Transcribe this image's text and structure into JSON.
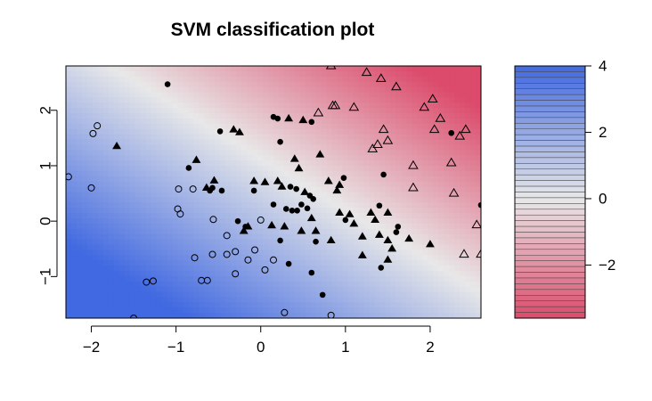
{
  "chart_data": {
    "type": "scatter",
    "title": "SVM classification plot",
    "xlabel": "",
    "ylabel": "",
    "xlim": [
      -2.3,
      2.6
    ],
    "ylim": [
      -1.75,
      2.8
    ],
    "x_ticks": [
      -2,
      -1,
      0,
      1,
      2
    ],
    "y_ticks": [
      -1,
      0,
      1,
      2
    ],
    "x_tick_labels": [
      "−2",
      "−1",
      "0",
      "1",
      "2"
    ],
    "y_tick_labels": [
      "−1",
      "0",
      "1",
      "2"
    ],
    "grid": false,
    "background": {
      "type": "decision-value-gradient",
      "levels_range": [
        -3.6,
        4
      ],
      "high_color": "#4169E1",
      "mid_color": "#E8E8E8",
      "low_color": "#DC4B6B",
      "decision_boundary": "approx. y = 1.14 - 0.93 x"
    },
    "colorbar": {
      "ticks": [
        4,
        2,
        0,
        -2
      ],
      "tick_labels": [
        "4",
        "2",
        "0",
        "−2"
      ],
      "range": [
        -3.6,
        4
      ],
      "top_color": "#4169E1",
      "mid_color": "#E8E8E8",
      "bottom_color": "#DC4B6B"
    },
    "series": [
      {
        "marker": "open-circle",
        "points": [
          [
            -2.27,
            0.8
          ],
          [
            -1.98,
            1.58
          ],
          [
            -1.93,
            1.72
          ],
          [
            -2.0,
            0.6
          ],
          [
            -1.5,
            -1.75
          ],
          [
            -1.35,
            -1.1
          ],
          [
            -1.27,
            -1.08
          ],
          [
            -0.98,
            0.22
          ],
          [
            -0.95,
            0.13
          ],
          [
            -0.97,
            0.58
          ],
          [
            -0.8,
            0.58
          ],
          [
            -0.78,
            -0.66
          ],
          [
            -0.7,
            -1.07
          ],
          [
            -0.63,
            -1.07
          ],
          [
            -0.56,
            0.03
          ],
          [
            -0.57,
            -0.6
          ],
          [
            -0.4,
            -0.26
          ],
          [
            -0.4,
            -0.6
          ],
          [
            -0.3,
            -0.55
          ],
          [
            -0.3,
            -0.95
          ],
          [
            -0.15,
            -0.7
          ],
          [
            -0.07,
            -0.52
          ],
          [
            0.0,
            0.02
          ],
          [
            0.05,
            -0.88
          ],
          [
            0.15,
            -0.7
          ],
          [
            0.28,
            -1.65
          ],
          [
            0.83,
            -1.7
          ]
        ]
      },
      {
        "marker": "filled-circle",
        "points": [
          [
            -1.1,
            2.47
          ],
          [
            -0.85,
            0.96
          ],
          [
            -0.6,
            0.55
          ],
          [
            -0.57,
            0.6
          ],
          [
            -0.48,
            1.62
          ],
          [
            -0.46,
            0.55
          ],
          [
            -0.27,
            0.0
          ],
          [
            -0.18,
            -0.1
          ],
          [
            -0.08,
            0.55
          ],
          [
            0.15,
            1.88
          ],
          [
            0.15,
            0.3
          ],
          [
            0.2,
            1.85
          ],
          [
            0.23,
            1.43
          ],
          [
            0.3,
            0.22
          ],
          [
            0.35,
            0.62
          ],
          [
            0.42,
            0.58
          ],
          [
            0.23,
            -0.35
          ],
          [
            0.33,
            -0.77
          ],
          [
            0.37,
            0.19
          ],
          [
            0.43,
            0.19
          ],
          [
            0.48,
            0.3
          ],
          [
            0.55,
            0.23
          ],
          [
            0.58,
            0.46
          ],
          [
            0.62,
            0.4
          ],
          [
            0.6,
            1.79
          ],
          [
            0.6,
            -0.93
          ],
          [
            0.65,
            -0.37
          ],
          [
            0.73,
            -1.33
          ],
          [
            0.98,
            0.78
          ],
          [
            1.0,
            0.02
          ],
          [
            1.4,
            0.28
          ],
          [
            1.45,
            0.84
          ],
          [
            1.6,
            -0.2
          ],
          [
            1.42,
            -0.84
          ],
          [
            1.62,
            -0.1
          ],
          [
            2.25,
            1.59
          ],
          [
            2.6,
            0.29
          ]
        ]
      },
      {
        "marker": "filled-triangle",
        "points": [
          [
            -1.7,
            1.35
          ],
          [
            -0.76,
            1.1
          ],
          [
            -0.64,
            0.6
          ],
          [
            -0.55,
            0.73
          ],
          [
            -0.32,
            1.65
          ],
          [
            -0.25,
            1.6
          ],
          [
            -0.2,
            -0.18
          ],
          [
            -0.15,
            -0.1
          ],
          [
            -0.08,
            0.72
          ],
          [
            0.05,
            0.7
          ],
          [
            0.13,
            -0.08
          ],
          [
            0.2,
            0.72
          ],
          [
            0.25,
            0.62
          ],
          [
            0.28,
            -0.1
          ],
          [
            0.33,
            1.85
          ],
          [
            0.4,
            1.12
          ],
          [
            0.45,
            0.95
          ],
          [
            0.5,
            1.82
          ],
          [
            0.52,
            0.52
          ],
          [
            0.48,
            -0.18
          ],
          [
            0.65,
            -0.18
          ],
          [
            0.7,
            1.2
          ],
          [
            0.6,
            0.05
          ],
          [
            0.8,
            0.72
          ],
          [
            0.83,
            -0.35
          ],
          [
            0.9,
            0.55
          ],
          [
            0.93,
            0.65
          ],
          [
            0.93,
            0.15
          ],
          [
            1.05,
            0.12
          ],
          [
            1.1,
            -0.05
          ],
          [
            1.2,
            -0.28
          ],
          [
            1.2,
            -0.62
          ],
          [
            1.3,
            0.15
          ],
          [
            1.35,
            0.02
          ],
          [
            1.4,
            -0.25
          ],
          [
            1.5,
            0.15
          ],
          [
            1.5,
            -0.7
          ],
          [
            1.55,
            -0.5
          ],
          [
            1.5,
            -0.35
          ],
          [
            1.75,
            -0.32
          ],
          [
            2.0,
            -0.42
          ]
        ]
      },
      {
        "marker": "open-triangle",
        "points": [
          [
            0.83,
            2.8
          ],
          [
            0.85,
            2.08
          ],
          [
            0.88,
            2.08
          ],
          [
            0.68,
            1.95
          ],
          [
            1.1,
            2.05
          ],
          [
            1.25,
            2.68
          ],
          [
            1.42,
            2.57
          ],
          [
            1.6,
            2.42
          ],
          [
            1.32,
            1.3
          ],
          [
            1.38,
            1.38
          ],
          [
            1.45,
            1.65
          ],
          [
            1.5,
            1.45
          ],
          [
            1.8,
            1.0
          ],
          [
            1.8,
            0.6
          ],
          [
            1.93,
            2.05
          ],
          [
            2.03,
            2.2
          ],
          [
            2.05,
            1.65
          ],
          [
            2.12,
            1.85
          ],
          [
            2.25,
            1.05
          ],
          [
            2.28,
            0.5
          ],
          [
            2.35,
            1.53
          ],
          [
            2.42,
            1.65
          ],
          [
            2.4,
            -0.6
          ],
          [
            2.55,
            -0.07
          ],
          [
            2.6,
            -0.6
          ]
        ]
      }
    ]
  }
}
